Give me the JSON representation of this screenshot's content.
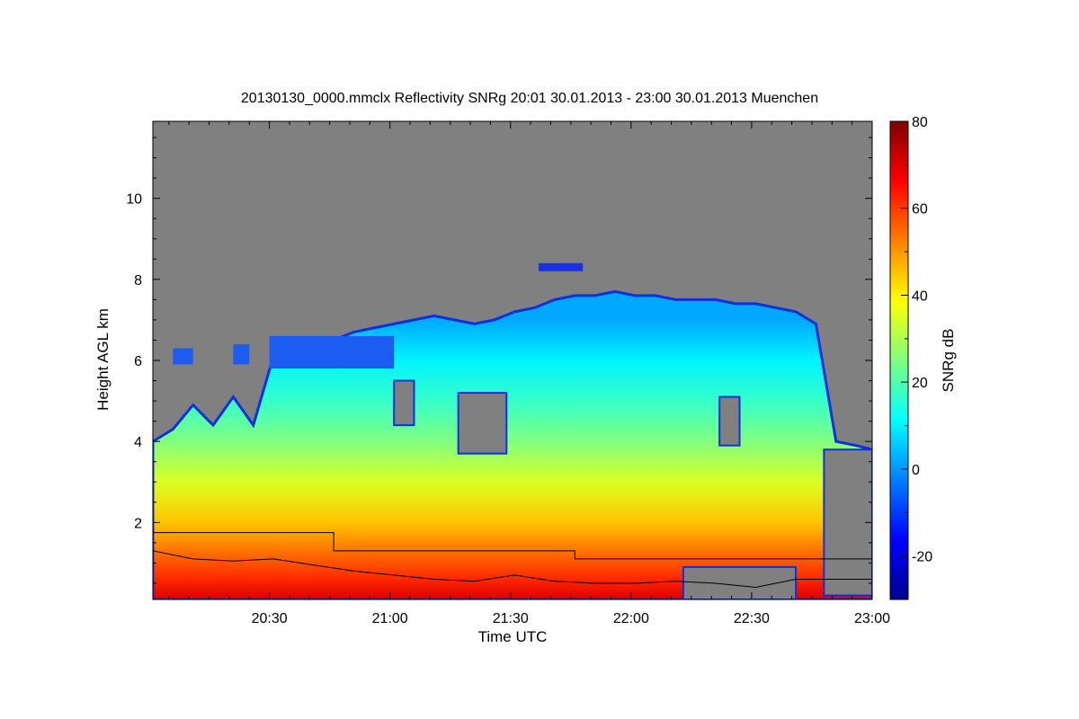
{
  "chart_data": {
    "type": "heatmap",
    "title": "20130130_0000.mmclx Reflectivity SNRg   20:01 30.01.2013 - 23:00 30.01.2013 Muenchen",
    "xlabel": "Time UTC",
    "ylabel": "Height AGL km",
    "x_range_minutes": [
      0,
      179
    ],
    "y_range_km": [
      0.1,
      11.9
    ],
    "x_ticks": [
      {
        "label": "20:30",
        "minute": 29
      },
      {
        "label": "21:00",
        "minute": 59
      },
      {
        "label": "21:30",
        "minute": 89
      },
      {
        "label": "22:00",
        "minute": 119
      },
      {
        "label": "22:30",
        "minute": 149
      },
      {
        "label": "23:00",
        "minute": 179
      }
    ],
    "y_ticks": [
      2,
      4,
      6,
      8,
      10
    ],
    "colorbar": {
      "label": "SNRg dB",
      "range": [
        -30,
        80
      ],
      "ticks": [
        -20,
        0,
        20,
        40,
        60,
        80
      ]
    },
    "background_color": "#808080",
    "cloud_top_km": [
      {
        "minute": 0,
        "top": 4.0
      },
      {
        "minute": 5,
        "top": 4.3
      },
      {
        "minute": 10,
        "top": 4.9
      },
      {
        "minute": 15,
        "top": 4.4
      },
      {
        "minute": 20,
        "top": 5.1
      },
      {
        "minute": 25,
        "top": 4.4
      },
      {
        "minute": 30,
        "top": 6.1
      },
      {
        "minute": 35,
        "top": 6.3
      },
      {
        "minute": 40,
        "top": 6.3
      },
      {
        "minute": 45,
        "top": 6.5
      },
      {
        "minute": 50,
        "top": 6.7
      },
      {
        "minute": 55,
        "top": 6.8
      },
      {
        "minute": 60,
        "top": 6.9
      },
      {
        "minute": 65,
        "top": 7.0
      },
      {
        "minute": 70,
        "top": 7.1
      },
      {
        "minute": 75,
        "top": 7.0
      },
      {
        "minute": 80,
        "top": 6.9
      },
      {
        "minute": 85,
        "top": 7.0
      },
      {
        "minute": 90,
        "top": 7.2
      },
      {
        "minute": 95,
        "top": 7.3
      },
      {
        "minute": 100,
        "top": 7.5
      },
      {
        "minute": 105,
        "top": 7.6
      },
      {
        "minute": 110,
        "top": 7.6
      },
      {
        "minute": 115,
        "top": 7.7
      },
      {
        "minute": 120,
        "top": 7.6
      },
      {
        "minute": 125,
        "top": 7.6
      },
      {
        "minute": 130,
        "top": 7.5
      },
      {
        "minute": 135,
        "top": 7.5
      },
      {
        "minute": 140,
        "top": 7.5
      },
      {
        "minute": 145,
        "top": 7.4
      },
      {
        "minute": 150,
        "top": 7.4
      },
      {
        "minute": 155,
        "top": 7.3
      },
      {
        "minute": 160,
        "top": 7.2
      },
      {
        "minute": 165,
        "top": 6.9
      },
      {
        "minute": 170,
        "top": 4.0
      },
      {
        "minute": 175,
        "top": 3.9
      },
      {
        "minute": 179,
        "top": 3.8
      }
    ],
    "upper_layers_km": [
      {
        "minute_start": 5,
        "minute_end": 10,
        "bottom": 5.9,
        "top": 6.3
      },
      {
        "minute_start": 20,
        "minute_end": 24,
        "bottom": 5.9,
        "top": 6.4
      },
      {
        "minute_start": 29,
        "minute_end": 60,
        "bottom": 5.8,
        "top": 6.6
      },
      {
        "minute_start": 96,
        "minute_end": 107,
        "bottom": 8.2,
        "top": 8.4
      }
    ],
    "clear_gaps_km": [
      {
        "minute_start": 60,
        "minute_end": 65,
        "bottom": 4.4,
        "top": 5.5
      },
      {
        "minute_start": 76,
        "minute_end": 88,
        "bottom": 3.7,
        "top": 5.2
      },
      {
        "minute_start": 141,
        "minute_end": 146,
        "bottom": 3.9,
        "top": 5.1
      },
      {
        "minute_start": 167,
        "minute_end": 179,
        "bottom": 0.2,
        "top": 3.8
      },
      {
        "minute_start": 132,
        "minute_end": 160,
        "bottom": 0.1,
        "top": 0.9
      }
    ],
    "reflectivity_profile": [
      {
        "height": 0.1,
        "snr": 70
      },
      {
        "height": 0.6,
        "snr": 62
      },
      {
        "height": 1.2,
        "snr": 55
      },
      {
        "height": 2.0,
        "snr": 45
      },
      {
        "height": 3.0,
        "snr": 35
      },
      {
        "height": 4.0,
        "snr": 25
      },
      {
        "height": 5.0,
        "snr": 17
      },
      {
        "height": 6.0,
        "snr": 10
      },
      {
        "height": 7.0,
        "snr": 2
      }
    ],
    "step_line_km": [
      {
        "minute": 0,
        "value": 1.75
      },
      {
        "minute": 45,
        "value": 1.75
      },
      {
        "minute": 45,
        "value": 1.3
      },
      {
        "minute": 105,
        "value": 1.3
      },
      {
        "minute": 105,
        "value": 1.1
      },
      {
        "minute": 179,
        "value": 1.1
      }
    ],
    "wavy_line_km": [
      {
        "minute": 0,
        "value": 1.3
      },
      {
        "minute": 10,
        "value": 1.1
      },
      {
        "minute": 20,
        "value": 1.05
      },
      {
        "minute": 30,
        "value": 1.1
      },
      {
        "minute": 40,
        "value": 0.95
      },
      {
        "minute": 50,
        "value": 0.8
      },
      {
        "minute": 60,
        "value": 0.7
      },
      {
        "minute": 70,
        "value": 0.6
      },
      {
        "minute": 80,
        "value": 0.55
      },
      {
        "minute": 90,
        "value": 0.7
      },
      {
        "minute": 100,
        "value": 0.55
      },
      {
        "minute": 110,
        "value": 0.5
      },
      {
        "minute": 120,
        "value": 0.5
      },
      {
        "minute": 130,
        "value": 0.55
      },
      {
        "minute": 140,
        "value": 0.5
      },
      {
        "minute": 150,
        "value": 0.4
      },
      {
        "minute": 160,
        "value": 0.6
      },
      {
        "minute": 179,
        "value": 0.6
      }
    ]
  }
}
